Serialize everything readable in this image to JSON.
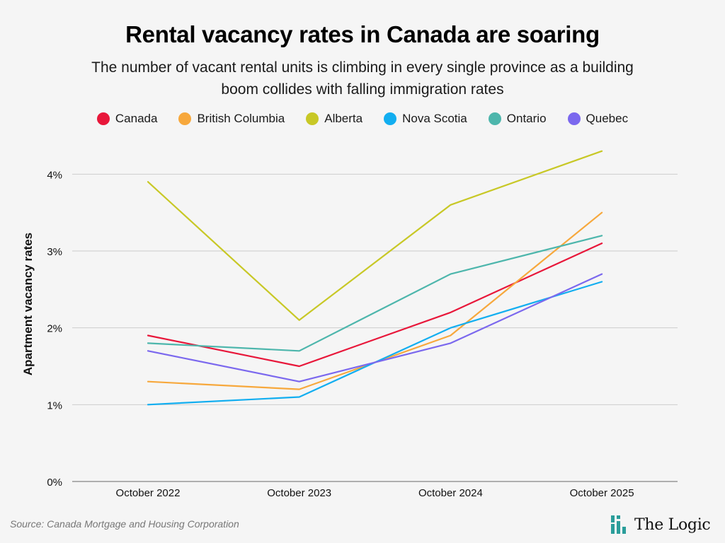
{
  "title": "Rental vacancy rates in Canada are soaring",
  "subtitle": "The number of vacant rental units is climbing in every single province as a building boom collides with falling immigration rates",
  "source": "Source: Canada Mortgage and Housing Corporation",
  "logo": {
    "text": "The Logic",
    "icon": "bar-cluster-logo-icon",
    "color": "#2a9d9a"
  },
  "chart_data": {
    "type": "line",
    "title": "Rental vacancy rates in Canada are soaring",
    "subtitle": "The number of vacant rental units is climbing in every single province as a building boom collides with falling immigration rates",
    "xlabel": "",
    "ylabel": "Apartment vacancy rates",
    "categories": [
      "October 2022",
      "October 2023",
      "October 2024",
      "October 2025"
    ],
    "ylim": [
      0,
      4.5
    ],
    "yticks": [
      0,
      1,
      2,
      3,
      4
    ],
    "ytick_labels": [
      "0%",
      "1%",
      "2%",
      "3%",
      "4%"
    ],
    "grid": true,
    "legend_position": "top-center",
    "series": [
      {
        "name": "Canada",
        "color": "#e8173a",
        "values": [
          1.9,
          1.5,
          2.2,
          3.1
        ]
      },
      {
        "name": "British Columbia",
        "color": "#f7a83c",
        "values": [
          1.3,
          1.2,
          1.9,
          3.5
        ]
      },
      {
        "name": "Alberta",
        "color": "#c8c826",
        "values": [
          3.9,
          2.1,
          3.6,
          4.3
        ]
      },
      {
        "name": "Nova Scotia",
        "color": "#12aef0",
        "values": [
          1.0,
          1.1,
          2.0,
          2.6
        ]
      },
      {
        "name": "Ontario",
        "color": "#4db6ac",
        "values": [
          1.8,
          1.7,
          2.7,
          3.2
        ]
      },
      {
        "name": "Quebec",
        "color": "#7b68ee",
        "values": [
          1.7,
          1.3,
          1.8,
          2.7
        ]
      }
    ]
  }
}
